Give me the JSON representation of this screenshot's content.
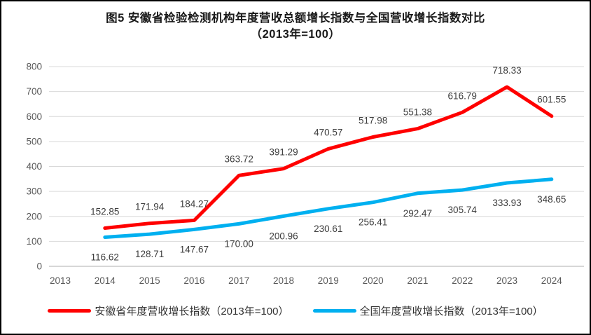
{
  "window": {
    "title_line1": "图5  安徽省检验检测机构年度营收总额增长指数与全国营收增长指数对比",
    "title_line2": "（2013年=100）"
  },
  "chart_data": {
    "type": "line",
    "title": "图5 安徽省检验检测机构年度营收总额增长指数与全国营收增长指数对比（2013年=100）",
    "categories": [
      "2013",
      "2014",
      "2015",
      "2016",
      "2017",
      "2018",
      "2019",
      "2020",
      "2021",
      "2022",
      "2023",
      "2024"
    ],
    "series": [
      {
        "name": "安徽省年度营收增长指数（2013年=100）",
        "color": "#FF0000",
        "label_position": "above",
        "values": [
          null,
          152.85,
          171.94,
          184.27,
          363.72,
          391.29,
          470.57,
          517.98,
          551.38,
          616.79,
          718.33,
          601.55
        ]
      },
      {
        "name": "全国年度营收增长指数（2013年=100）",
        "color": "#00B0F0",
        "label_position": "below",
        "values": [
          null,
          116.62,
          128.71,
          147.67,
          170.0,
          200.96,
          230.61,
          256.41,
          292.47,
          305.74,
          333.93,
          348.65
        ]
      }
    ],
    "ylim": [
      0,
      800
    ],
    "ytick_step": 100,
    "grid": true,
    "legend_position": "bottom",
    "gridline_color": "#D9D9D9",
    "axis_line_color": "#BFBFBF",
    "tick_label_color": "#595959",
    "data_label_color": "#3D3D3D"
  }
}
